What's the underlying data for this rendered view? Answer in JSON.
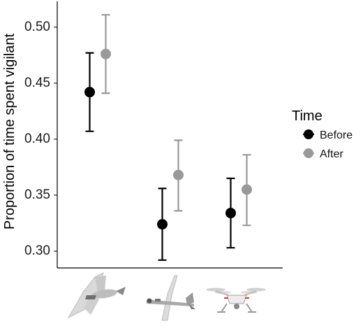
{
  "chart_data": {
    "type": "scatter",
    "ylabel": "Proportion of time spent vigilant",
    "ylim": [
      0.285,
      0.523
    ],
    "yticks": [
      0.3,
      0.35,
      0.4,
      0.45,
      0.5
    ],
    "ytick_labels": [
      "0.30",
      "0.35",
      "0.40",
      "0.45",
      "0.50"
    ],
    "grid": false,
    "categories": [
      "bird-shaped drone",
      "fixed-wing drone",
      "quadcopter drone"
    ],
    "category_icons": [
      "bird-drone-icon",
      "fixed-wing-drone-icon",
      "quadcopter-drone-icon"
    ],
    "legend": {
      "title": "Time",
      "position": "right",
      "entries": [
        "Before",
        "After"
      ]
    },
    "series": [
      {
        "name": "Before",
        "color": "#000000",
        "values": [
          0.442,
          0.324,
          0.334
        ],
        "lower": [
          0.407,
          0.292,
          0.303
        ],
        "upper": [
          0.477,
          0.356,
          0.365
        ]
      },
      {
        "name": "After",
        "color": "#999999",
        "values": [
          0.476,
          0.368,
          0.355
        ],
        "lower": [
          0.441,
          0.336,
          0.323
        ],
        "upper": [
          0.511,
          0.399,
          0.386
        ]
      }
    ]
  }
}
